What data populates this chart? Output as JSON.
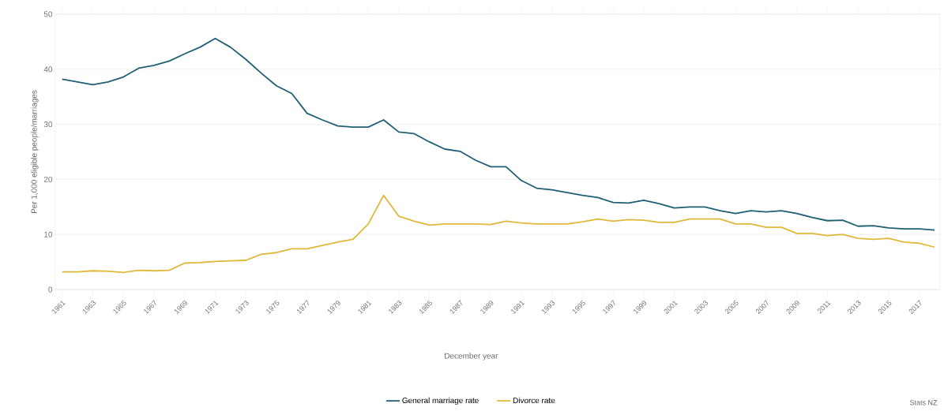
{
  "chart_data": {
    "type": "line",
    "xlabel": "December year",
    "ylabel": "Per 1,000 eligible people/marriages",
    "categories": [
      "1961",
      null,
      "1963",
      null,
      "1965",
      null,
      "1967",
      null,
      "1969",
      null,
      "1971",
      null,
      "1973",
      null,
      "1975",
      null,
      "1977",
      null,
      "1979",
      null,
      "1981",
      null,
      "1983",
      null,
      "1985",
      null,
      "1987",
      null,
      "1989",
      null,
      "1991",
      null,
      "1993",
      null,
      "1995",
      null,
      "1997",
      null,
      "1999",
      null,
      "2001",
      null,
      "2003",
      null,
      "2005",
      null,
      "2007",
      null,
      "2009",
      null,
      "2011",
      null,
      "2013",
      null,
      "2015",
      null,
      "2017",
      null
    ],
    "series": [
      {
        "name": "General marriage rate",
        "color": "#1f5f73",
        "values": [
          38.2,
          37.7,
          37.2,
          37.7,
          38.6,
          40.2,
          40.7,
          41.5,
          42.8,
          44.0,
          45.6,
          44.0,
          41.8,
          39.3,
          37.0,
          35.6,
          32.0,
          30.8,
          29.7,
          29.5,
          29.5,
          30.8,
          28.6,
          28.3,
          26.8,
          25.5,
          25.1,
          23.5,
          22.3,
          22.3,
          19.8,
          18.4,
          18.1,
          17.6,
          17.1,
          16.7,
          15.8,
          15.7,
          16.2,
          15.6,
          14.8,
          15.0,
          15.0,
          14.3,
          13.8,
          14.3,
          14.1,
          14.3,
          13.8,
          13.1,
          12.5,
          12.6,
          11.5,
          11.6,
          11.2,
          11.0,
          11.0,
          10.8
        ]
      },
      {
        "name": "Divorce rate",
        "color": "#e0b83a",
        "values": [
          3.2,
          3.2,
          3.4,
          3.3,
          3.1,
          3.5,
          3.4,
          3.5,
          4.8,
          4.9,
          5.1,
          5.2,
          5.3,
          6.4,
          6.7,
          7.4,
          7.4,
          8.0,
          8.6,
          9.1,
          11.9,
          17.1,
          13.3,
          12.4,
          11.7,
          11.9,
          11.9,
          11.9,
          11.8,
          12.4,
          12.1,
          11.9,
          11.9,
          11.9,
          12.3,
          12.8,
          12.4,
          12.7,
          12.6,
          12.2,
          12.2,
          12.8,
          12.8,
          12.8,
          11.9,
          11.9,
          11.3,
          11.3,
          10.2,
          10.2,
          9.8,
          10.0,
          9.3,
          9.1,
          9.3,
          8.6,
          8.4,
          7.7
        ]
      }
    ],
    "ylim": [
      0,
      50
    ],
    "yticks": [
      0,
      10,
      20,
      30,
      40,
      50
    ],
    "grid": "y",
    "legend": "bottom",
    "annotations": [
      "Stats NZ"
    ]
  }
}
